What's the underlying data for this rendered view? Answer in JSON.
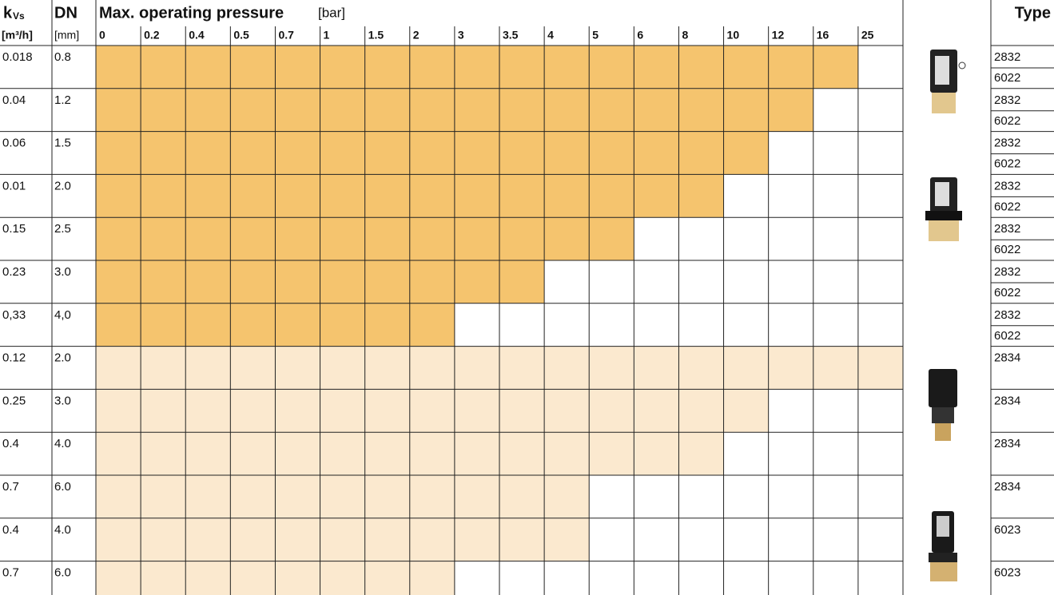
{
  "header": {
    "kvs_symbol": "k",
    "kvs_subscript": "Vs",
    "kvs_unit": "[m³/h]",
    "dn": "DN",
    "dn_unit": "[mm]",
    "pressure_title": "Max. operating pressure",
    "pressure_unit": "[bar]",
    "type": "Type"
  },
  "pressures": [
    0,
    0.2,
    0.4,
    0.5,
    0.7,
    1,
    1.5,
    2,
    3,
    3.5,
    4,
    5,
    6,
    8,
    10,
    12,
    16,
    25
  ],
  "rows": [
    {
      "kvs": "0.018",
      "dn": "0.8",
      "max_pressure": 16,
      "color": "#f5c46e",
      "types": [
        "2832",
        "6022"
      ]
    },
    {
      "kvs": "0.04",
      "dn": "1.2",
      "max_pressure": 12,
      "color": "#f5c46e",
      "types": [
        "2832",
        "6022"
      ]
    },
    {
      "kvs": "0.06",
      "dn": "1.5",
      "max_pressure": 10,
      "color": "#f5c46e",
      "types": [
        "2832",
        "6022"
      ]
    },
    {
      "kvs": "0.01",
      "dn": "2.0",
      "max_pressure": 8,
      "color": "#f5c46e",
      "types": [
        "2832",
        "6022"
      ]
    },
    {
      "kvs": "0.15",
      "dn": "2.5",
      "max_pressure": 5,
      "color": "#f5c46e",
      "types": [
        "2832",
        "6022"
      ]
    },
    {
      "kvs": "0.23",
      "dn": "3.0",
      "max_pressure": 3.5,
      "color": "#f5c46e",
      "types": [
        "2832",
        "6022"
      ]
    },
    {
      "kvs": "0,33",
      "dn": "4,0",
      "max_pressure": 2,
      "color": "#f5c46e",
      "types": [
        "2832",
        "6022"
      ]
    },
    {
      "kvs": "0.12",
      "dn": "2.0",
      "max_pressure": 25,
      "color": "#fbe9cf",
      "types": [
        "2834"
      ]
    },
    {
      "kvs": "0.25",
      "dn": "3.0",
      "max_pressure": 10,
      "color": "#fbe9cf",
      "types": [
        "2834"
      ]
    },
    {
      "kvs": "0.4",
      "dn": "4.0",
      "max_pressure": 8,
      "color": "#fbe9cf",
      "types": [
        "2834"
      ]
    },
    {
      "kvs": "0.7",
      "dn": "6.0",
      "max_pressure": 4,
      "color": "#fbe9cf",
      "types": [
        "2834"
      ]
    },
    {
      "kvs": "0.4",
      "dn": "4.0",
      "max_pressure": 4,
      "color": "#fbe9cf",
      "types": [
        "6023"
      ]
    },
    {
      "kvs": "0.7",
      "dn": "6.0",
      "max_pressure": 2,
      "color": "#fbe9cf",
      "types": [
        "6023"
      ]
    }
  ]
}
